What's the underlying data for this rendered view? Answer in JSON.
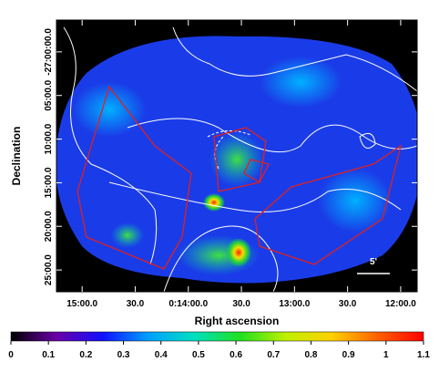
{
  "chart_data": {
    "type": "image",
    "xlabel": "Right ascension",
    "ylabel": "Declination",
    "xlim": [
      914.5,
      710.7
    ],
    "xticks": [
      {
        "value": 900,
        "label": "15:00.0"
      },
      {
        "value": 870,
        "label": "30.0"
      },
      {
        "value": 840,
        "label": "0:14:00.0"
      },
      {
        "value": 810,
        "label": "30.0"
      },
      {
        "value": 780,
        "label": "13:00.0"
      },
      {
        "value": 750,
        "label": "30.0"
      },
      {
        "value": 720,
        "label": "12:00.0"
      }
    ],
    "ylim": [
      -26.9392,
      -27.4583
    ],
    "yticks": [
      {
        "value": -27,
        "label": "-27:00:00.0"
      },
      {
        "value": -27.0833,
        "label": "05:00.0"
      },
      {
        "value": -27.1667,
        "label": "10:00.0"
      },
      {
        "value": -27.25,
        "label": "15:00.0"
      },
      {
        "value": -27.3333,
        "label": "20:00.0"
      },
      {
        "value": -27.4167,
        "label": "25:00.0"
      }
    ],
    "scalebar_label": "5'",
    "colorbar": {
      "lim": [
        0,
        1.1
      ],
      "ticks": [
        0,
        0.1,
        0.2,
        0.3,
        0.4,
        0.5,
        0.6,
        0.7,
        0.8,
        0.9,
        1,
        1.1
      ],
      "colors": [
        "#000000",
        "#6a00a8",
        "#1010ff",
        "#00a0ff",
        "#00e0c0",
        "#20e020",
        "#c0f000",
        "#ffd000",
        "#ff6000",
        "#ff0000"
      ]
    }
  }
}
